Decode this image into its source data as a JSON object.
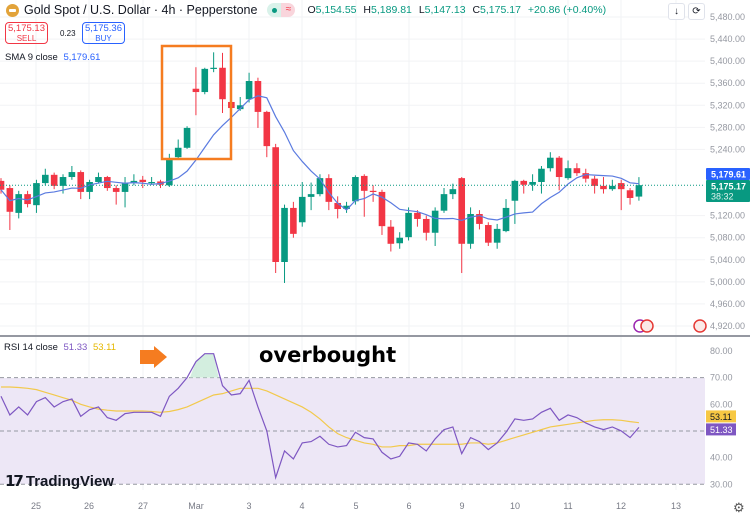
{
  "header": {
    "title": "Gold Spot / U.S. Dollar · 4h · Pepperstone",
    "badge_icon": "approx-equal-icon",
    "ohlc": {
      "o_label": "O",
      "o": "5,154.55",
      "h_label": "H",
      "h": "5,189.81",
      "l_label": "L",
      "l": "5,147.13",
      "c_label": "C",
      "c": "5,175.17",
      "change": "+20.86 (+0.40%)"
    }
  },
  "trade": {
    "sell_price": "5,175.13",
    "sell_label": "SELL",
    "spread": "0.23",
    "buy_price": "5,175.36",
    "buy_label": "BUY"
  },
  "toolbar": {
    "down_icon": "↓",
    "refresh_icon": "⟳"
  },
  "indicators": {
    "sma": {
      "label": "SMA",
      "params": "9 close",
      "value": "5,179.61"
    },
    "rsi": {
      "label": "RSI",
      "params": "14 close",
      "value": "51.33",
      "ma_value": "53.11"
    }
  },
  "price_labels": {
    "sma": "5,179.61",
    "last": "5,175.17",
    "countdown": "38:32"
  },
  "annotation": {
    "text": "overbought",
    "arrow_color": "#f57c20",
    "box_color": "#f57c20"
  },
  "logo": "TradingView",
  "colors": {
    "up": "#089981",
    "down": "#f23645",
    "sma": "#5b7be0",
    "rsi": "#7e57c2",
    "rsi_ma": "#f2c94c",
    "band": "#ede7f6"
  },
  "chart_data": [
    {
      "type": "candlestick",
      "title": "Gold Spot / U.S. Dollar · 4h · Pepperstone",
      "ylim": [
        4900,
        5500
      ],
      "y_ticks": [
        "5,480.00",
        "5,440.00",
        "5,400.00",
        "5,360.00",
        "5,320.00",
        "5,280.00",
        "5,240.00",
        "5,120.00",
        "5,080.00",
        "5,040.00",
        "5,000.00",
        "4,960.00",
        "4,920.00"
      ],
      "x_ticks": [
        "25",
        "26",
        "27",
        "Mar",
        "3",
        "4",
        "5",
        "6",
        "9",
        "10",
        "11",
        "12",
        "13"
      ],
      "grid": true,
      "ohlc": [
        [
          5183,
          5188,
          5160,
          5167
        ],
        [
          5170,
          5175,
          5094,
          5127
        ],
        [
          5125,
          5165,
          5115,
          5159
        ],
        [
          5159,
          5165,
          5135,
          5141
        ],
        [
          5139,
          5185,
          5125,
          5179
        ],
        [
          5179,
          5205,
          5175,
          5194
        ],
        [
          5194,
          5198,
          5168,
          5174
        ],
        [
          5174,
          5195,
          5160,
          5190
        ],
        [
          5190,
          5210,
          5185,
          5199
        ],
        [
          5199,
          5202,
          5150,
          5163
        ],
        [
          5163,
          5185,
          5150,
          5181
        ],
        [
          5181,
          5198,
          5178,
          5190
        ],
        [
          5190,
          5192,
          5165,
          5170
        ],
        [
          5170,
          5175,
          5140,
          5163
        ],
        [
          5163,
          5190,
          5135,
          5179
        ],
        [
          5179,
          5195,
          5175,
          5183
        ],
        [
          5185,
          5192,
          5170,
          5181
        ],
        [
          5180,
          5190,
          5176,
          5181
        ],
        [
          5182,
          5185,
          5170,
          5176
        ],
        [
          5175,
          5232,
          5172,
          5221
        ],
        [
          5226,
          5258,
          5222,
          5243
        ],
        [
          5243,
          5282,
          5241,
          5279
        ],
        [
          5350,
          5389,
          5302,
          5344
        ],
        [
          5344,
          5388,
          5340,
          5386
        ],
        [
          5386,
          5416,
          5380,
          5388
        ],
        [
          5388,
          5415,
          5306,
          5331
        ],
        [
          5326,
          5330,
          5305,
          5315
        ],
        [
          5313,
          5335,
          5310,
          5320
        ],
        [
          5331,
          5379,
          5325,
          5364
        ],
        [
          5364,
          5370,
          5279,
          5308
        ],
        [
          5308,
          5310,
          5226,
          5246
        ],
        [
          5244,
          5250,
          5016,
          5036
        ],
        [
          5036,
          5140,
          4998,
          5134
        ],
        [
          5134,
          5145,
          5080,
          5087
        ],
        [
          5108,
          5181,
          5100,
          5154
        ],
        [
          5154,
          5180,
          5130,
          5159
        ],
        [
          5159,
          5195,
          5155,
          5188
        ],
        [
          5188,
          5195,
          5130,
          5145
        ],
        [
          5143,
          5155,
          5115,
          5132
        ],
        [
          5132,
          5145,
          5125,
          5138
        ],
        [
          5146,
          5193,
          5140,
          5190
        ],
        [
          5192,
          5195,
          5118,
          5165
        ],
        [
          5165,
          5175,
          5145,
          5163
        ],
        [
          5163,
          5167,
          5085,
          5101
        ],
        [
          5100,
          5112,
          5055,
          5069
        ],
        [
          5070,
          5090,
          5060,
          5080
        ],
        [
          5081,
          5135,
          5075,
          5125
        ],
        [
          5125,
          5130,
          5100,
          5114
        ],
        [
          5114,
          5120,
          5075,
          5089
        ],
        [
          5089,
          5135,
          5065,
          5129
        ],
        [
          5129,
          5170,
          5125,
          5159
        ],
        [
          5159,
          5178,
          5150,
          5168
        ],
        [
          5188,
          5190,
          5016,
          5069
        ],
        [
          5069,
          5135,
          5060,
          5123
        ],
        [
          5123,
          5130,
          5095,
          5105
        ],
        [
          5103,
          5108,
          5065,
          5071
        ],
        [
          5071,
          5105,
          5060,
          5096
        ],
        [
          5092,
          5150,
          5090,
          5134
        ],
        [
          5147,
          5185,
          5105,
          5183
        ],
        [
          5183,
          5185,
          5160,
          5176
        ],
        [
          5176,
          5195,
          5165,
          5181
        ],
        [
          5181,
          5210,
          5160,
          5205
        ],
        [
          5206,
          5235,
          5200,
          5225
        ],
        [
          5225,
          5228,
          5166,
          5190
        ],
        [
          5188,
          5220,
          5185,
          5206
        ],
        [
          5206,
          5215,
          5192,
          5197
        ],
        [
          5197,
          5205,
          5180,
          5187
        ],
        [
          5187,
          5192,
          5160,
          5174
        ],
        [
          5174,
          5190,
          5160,
          5168
        ],
        [
          5168,
          5185,
          5165,
          5174
        ],
        [
          5179,
          5185,
          5130,
          5168
        ],
        [
          5166,
          5170,
          5140,
          5152
        ],
        [
          5154.55,
          5189.81,
          5147.13,
          5175.17
        ]
      ],
      "series": [
        {
          "name": "SMA 9 close",
          "last": 5179.61
        }
      ]
    },
    {
      "type": "line",
      "title": "RSI 14 close",
      "ylim": [
        28,
        82
      ],
      "y_ticks": [
        "80.00",
        "70.00",
        "60.00",
        "40.00",
        "30.00"
      ],
      "bands": {
        "upper": 70,
        "middle": 50,
        "lower": 30
      },
      "series": [
        {
          "name": "RSI",
          "values": [
            63,
            56,
            59,
            56,
            61,
            62.5,
            59,
            61,
            62,
            55.5,
            58,
            59,
            55,
            54,
            56.5,
            57,
            57,
            57,
            55.5,
            63,
            66,
            70,
            76,
            79,
            79,
            67,
            63.5,
            64,
            69,
            59,
            50,
            32.5,
            42.5,
            39.5,
            45.5,
            46,
            48,
            45,
            44,
            44.5,
            49.5,
            47.5,
            47,
            42,
            39.5,
            40.5,
            45.5,
            45,
            42.5,
            47,
            50.5,
            51.5,
            41.5,
            47.5,
            46,
            43,
            45.5,
            49.5,
            54.5,
            54,
            54.5,
            57,
            58.5,
            54,
            56,
            55,
            53,
            51.5,
            50.5,
            51.5,
            50,
            47.5,
            51.33
          ]
        },
        {
          "name": "RSI-based MA",
          "values": [
            66.5,
            66.5,
            66.3,
            66,
            65.5,
            64.5,
            63.5,
            62.5,
            61.5,
            60,
            59,
            58.2,
            57.8,
            57.5,
            57.5,
            57.5,
            57.5,
            57.3,
            57,
            57.3,
            58,
            59,
            60.5,
            62,
            63.5,
            64,
            65,
            66,
            66,
            66,
            65,
            63.5,
            62,
            60.5,
            59,
            57,
            54.5,
            51.5,
            49,
            47.5,
            46.5,
            45.5,
            45,
            44,
            44,
            44.5,
            44.5,
            45,
            45,
            45,
            45,
            45,
            45,
            45.5,
            45.5,
            45,
            45.5,
            46.5,
            47.5,
            48.5,
            49.5,
            50.5,
            51.5,
            52,
            52.5,
            53,
            53.5,
            54,
            54.2,
            54.2,
            54,
            53.5,
            53.11
          ]
        }
      ]
    }
  ]
}
